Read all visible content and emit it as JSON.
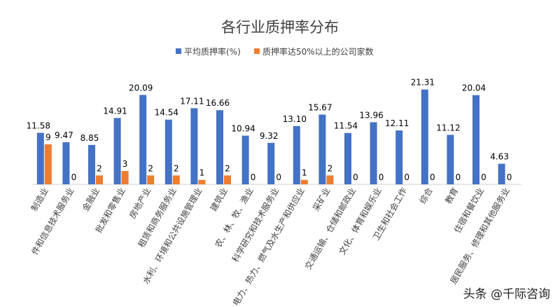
{
  "watermark": "头条 @千际咨询",
  "chart_data": {
    "type": "bar",
    "title": "各行业质押率分布",
    "legend_position": "top",
    "grid": false,
    "ylim": [
      0,
      22
    ],
    "categories": [
      "制造业",
      "信息传输、软件和信息技术服务业",
      "金融业",
      "批发和零售业",
      "房地产业",
      "租赁和商务服务业",
      "水利、环境和公共设施管理业",
      "建筑业",
      "农、林、牧、渔业",
      "科学研究和技术服务业",
      "电力、热力、燃气及水生产和供应业",
      "采矿业",
      "交通运输、仓储和邮政业",
      "文化、体育和娱乐业",
      "卫生和社会工作",
      "综合",
      "教育",
      "住宿和餐饮业",
      "居民服务、修理和其他服务业"
    ],
    "category_labels": [
      "制造业",
      "件和信息技术服务业",
      "金融业",
      "批发和零售业",
      "房地产业",
      "租赁和商务服务业",
      "水利、环境和公共设施管理业",
      "建筑业",
      "农、林、牧、渔业",
      "科学研究和技术服务业",
      "电力、热力、燃气及水生产和供应业",
      "采矿业",
      "交通运输、仓储和邮政业",
      "文化、体育和娱乐业",
      "卫生和社会工作",
      "综合",
      "教育",
      "住宿和餐饮业",
      "居民服务、修理和其他服务业"
    ],
    "series": [
      {
        "name": "平均质押率(%)",
        "color": "#4472C4",
        "values": [
          11.58,
          9.47,
          8.85,
          14.91,
          20.09,
          14.54,
          17.11,
          16.66,
          10.94,
          9.32,
          13.1,
          15.67,
          11.54,
          13.96,
          12.11,
          21.31,
          11.12,
          20.04,
          4.63
        ],
        "labels": [
          "11.58",
          "9.47",
          "8.85",
          "14.91",
          "20.09",
          "14.54",
          "17.11",
          "16.66",
          "10.94",
          "9.32",
          "13.10",
          "15.67",
          "11.54",
          "13.96",
          "12.11",
          "21.31",
          "11.12",
          "20.04",
          "4.63"
        ]
      },
      {
        "name": "质押率达50%以上的公司家数",
        "color": "#ED7D31",
        "values": [
          9,
          0,
          2,
          3,
          2,
          2,
          1,
          2,
          0,
          0,
          1,
          2,
          0,
          0,
          0,
          0,
          0,
          0,
          0
        ],
        "labels": [
          "9",
          "0",
          "2",
          "3",
          "2",
          "2",
          "1",
          "2",
          "0",
          "0",
          "1",
          "2",
          "0",
          "0",
          "0",
          "0",
          "0",
          "0",
          "0"
        ]
      }
    ]
  }
}
